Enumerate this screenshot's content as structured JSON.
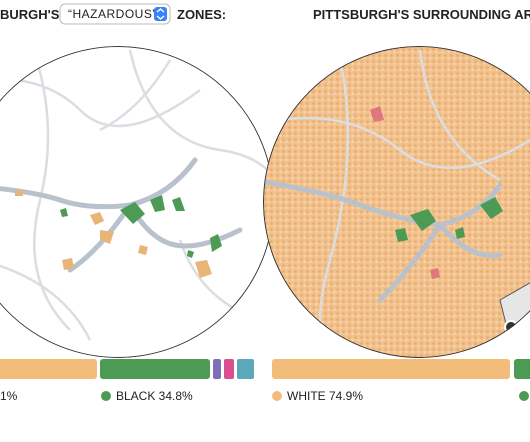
{
  "left_panel": {
    "title_start": "BURGH'S",
    "select": "“HAZARDOUS”",
    "title_end": "ZONES:",
    "legend": [
      {
        "label": "1%"
      },
      {
        "label": "BLACK 34.8%"
      }
    ]
  },
  "right_panel": {
    "title": "PITTSBURGH'S SURROUNDING AR",
    "legend": [
      {
        "label": "WHITE 74.9%"
      }
    ]
  }
}
